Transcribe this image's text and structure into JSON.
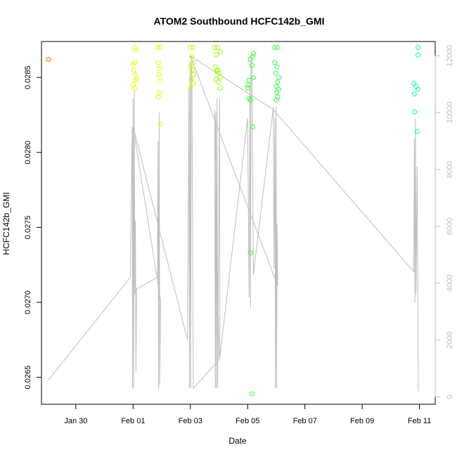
{
  "chart_data": {
    "type": "scatter",
    "title": "ATOM2 Southbound HCFC142b_GMI",
    "xlabel": "Date",
    "ylabel": "HCFC142b_GMI",
    "x_ticks": [
      "Jan 30",
      "Feb 01",
      "Feb 03",
      "Feb 05",
      "Feb 07",
      "Feb 09",
      "Feb 11"
    ],
    "x_ticks_day": [
      0,
      2,
      4,
      6,
      8,
      10,
      12
    ],
    "y_ticks": [
      "0.0265",
      "0.0270",
      "0.0275",
      "0.0280",
      "0.0285"
    ],
    "y_ticks_value": [
      0.0265,
      0.027,
      0.0275,
      0.028,
      0.0285
    ],
    "y2_ticks": [
      "0",
      "2000",
      "4000",
      "6000",
      "8000",
      "10000",
      "12000"
    ],
    "y2_ticks_value": [
      0,
      2000,
      4000,
      6000,
      8000,
      10000,
      12000
    ],
    "xlim": [
      -1.2,
      12.55
    ],
    "ylim": [
      0.02632,
      0.02874
    ],
    "y2lim": [
      -260,
      12500
    ],
    "series": [
      {
        "role": "points",
        "values": [
          [
            -0.95,
            0.02862,
            "#ff6600"
          ],
          [
            2.05,
            0.0287,
            "#e6ff00"
          ],
          [
            2.1,
            0.02868,
            "#e6ff00"
          ],
          [
            2.0,
            0.02859,
            "#e6ff00"
          ],
          [
            2.02,
            0.02855,
            "#e6ff00"
          ],
          [
            2.08,
            0.02852,
            "#e6ff00"
          ],
          [
            2.1,
            0.02848,
            "#e6ff00"
          ],
          [
            2.0,
            0.02845,
            "#e6ff00"
          ],
          [
            2.05,
            0.02843,
            "#e6ff00"
          ],
          [
            2.12,
            0.02849,
            "#e6ff00"
          ],
          [
            2.07,
            0.0286,
            "#e6ff00"
          ],
          [
            2.85,
            0.0287,
            "#d9ff00"
          ],
          [
            2.95,
            0.0287,
            "#d9ff00"
          ],
          [
            2.88,
            0.0286,
            "#d9ff00"
          ],
          [
            2.93,
            0.02856,
            "#d9ff00"
          ],
          [
            2.9,
            0.02852,
            "#d9ff00"
          ],
          [
            2.95,
            0.02848,
            "#d9ff00"
          ],
          [
            2.92,
            0.0284,
            "#d9ff00"
          ],
          [
            2.88,
            0.02837,
            "#d9ff00"
          ],
          [
            2.95,
            0.02819,
            "#d9ff00"
          ],
          [
            4.0,
            0.0287,
            "#bfff00"
          ],
          [
            4.1,
            0.0287,
            "#bfff00"
          ],
          [
            4.05,
            0.02864,
            "#bfff00"
          ],
          [
            4.1,
            0.0286,
            "#bfff00"
          ],
          [
            4.0,
            0.02857,
            "#bfff00"
          ],
          [
            4.07,
            0.02855,
            "#bfff00"
          ],
          [
            4.12,
            0.02852,
            "#bfff00"
          ],
          [
            4.03,
            0.02849,
            "#bfff00"
          ],
          [
            4.1,
            0.02846,
            "#bfff00"
          ],
          [
            4.0,
            0.02843,
            "#bfff00"
          ],
          [
            4.85,
            0.0287,
            "#99ff00"
          ],
          [
            4.95,
            0.0287,
            "#99ff00"
          ],
          [
            4.9,
            0.02865,
            "#99ff00"
          ],
          [
            5.05,
            0.02867,
            "#99ff00"
          ],
          [
            4.88,
            0.02857,
            "#99ff00"
          ],
          [
            4.95,
            0.02855,
            "#99ff00"
          ],
          [
            5.0,
            0.02853,
            "#99ff00"
          ],
          [
            5.05,
            0.0285,
            "#99ff00"
          ],
          [
            4.9,
            0.02849,
            "#99ff00"
          ],
          [
            4.98,
            0.02847,
            "#99ff00"
          ],
          [
            5.04,
            0.02843,
            "#99ff00"
          ],
          [
            4.93,
            0.02854,
            "#99ff00"
          ],
          [
            6.1,
            0.02862,
            "#33ff33"
          ],
          [
            6.2,
            0.02866,
            "#33ff33"
          ],
          [
            6.18,
            0.02864,
            "#33ff33"
          ],
          [
            6.15,
            0.02858,
            "#33ff33"
          ],
          [
            6.05,
            0.02848,
            "#33ff33"
          ],
          [
            6.02,
            0.02845,
            "#33ff33"
          ],
          [
            6.0,
            0.02843,
            "#33ff33"
          ],
          [
            6.2,
            0.0285,
            "#33ff33"
          ],
          [
            6.05,
            0.02836,
            "#33ff33"
          ],
          [
            6.1,
            0.02835,
            "#33ff33"
          ],
          [
            6.18,
            0.02817,
            "#33ff33"
          ],
          [
            6.1,
            0.02733,
            "#33ff33"
          ],
          [
            6.15,
            0.02639,
            "#33ff33"
          ],
          [
            6.95,
            0.0287,
            "#33ff55"
          ],
          [
            7.05,
            0.0287,
            "#33ff55"
          ],
          [
            6.95,
            0.0286,
            "#33ff55"
          ],
          [
            7.02,
            0.02857,
            "#33ff55"
          ],
          [
            6.98,
            0.02853,
            "#33ff55"
          ],
          [
            7.05,
            0.02847,
            "#33ff55"
          ],
          [
            7.0,
            0.02844,
            "#33ff55"
          ],
          [
            7.08,
            0.02842,
            "#33ff55"
          ],
          [
            7.02,
            0.0284,
            "#33ff55"
          ],
          [
            7.05,
            0.02837,
            "#33ff55"
          ],
          [
            7.0,
            0.02835,
            "#33ff55"
          ],
          [
            7.1,
            0.0285,
            "#33ff55"
          ],
          [
            11.95,
            0.0287,
            "#00ff99"
          ],
          [
            11.95,
            0.02865,
            "#00ff99"
          ],
          [
            11.8,
            0.02846,
            "#00ff99"
          ],
          [
            11.88,
            0.02844,
            "#00ff99"
          ],
          [
            11.95,
            0.02842,
            "#00ff99"
          ],
          [
            11.82,
            0.02839,
            "#00ff99"
          ],
          [
            11.83,
            0.02827,
            "#00ff99"
          ],
          [
            11.92,
            0.02814,
            "#00ff99"
          ]
        ]
      },
      {
        "role": "altitude-line",
        "color": "#bebebe",
        "values": [
          [
            -0.95,
            600
          ],
          [
            1.9,
            4200
          ],
          [
            1.97,
            9500
          ],
          [
            1.98,
            300
          ],
          [
            2.0,
            10500
          ],
          [
            2.02,
            300
          ],
          [
            2.04,
            10800
          ],
          [
            2.06,
            3600
          ],
          [
            2.08,
            6200
          ],
          [
            2.1,
            900
          ],
          [
            2.12,
            3800
          ],
          [
            2.85,
            4200
          ],
          [
            2.87,
            9000
          ],
          [
            2.89,
            300
          ],
          [
            2.91,
            10000
          ],
          [
            2.93,
            400
          ],
          [
            2.96,
            3400
          ],
          [
            2.0,
            9500
          ],
          [
            3.9,
            2000
          ],
          [
            3.95,
            10800
          ],
          [
            3.97,
            300
          ],
          [
            3.99,
            11800
          ],
          [
            4.01,
            300
          ],
          [
            4.03,
            11500
          ],
          [
            4.05,
            12000
          ],
          [
            4.1,
            300
          ],
          [
            5.0,
            1300
          ],
          [
            4.85,
            10100
          ],
          [
            4.87,
            300
          ],
          [
            4.89,
            10000
          ],
          [
            4.91,
            300
          ],
          [
            4.93,
            10500
          ],
          [
            4.95,
            300
          ],
          [
            5.02,
            10500
          ],
          [
            5.03,
            1400
          ],
          [
            6.0,
            9800
          ],
          [
            6.05,
            3500
          ],
          [
            6.08,
            10900
          ],
          [
            6.1,
            3100
          ],
          [
            6.12,
            12000
          ],
          [
            6.15,
            11500
          ],
          [
            6.2,
            4300
          ],
          [
            6.9,
            10200
          ],
          [
            6.92,
            4500
          ],
          [
            6.95,
            9800
          ],
          [
            6.97,
            300
          ],
          [
            6.99,
            10200
          ],
          [
            7.01,
            300
          ],
          [
            7.03,
            6100
          ],
          [
            7.05,
            3900
          ],
          [
            4.0,
            12000
          ],
          [
            6.9,
            10100
          ],
          [
            11.8,
            4400
          ],
          [
            11.82,
            9100
          ],
          [
            11.84,
            3300
          ],
          [
            11.86,
            9800
          ],
          [
            11.88,
            3600
          ],
          [
            11.92,
            8100
          ],
          [
            11.96,
            200
          ]
        ]
      }
    ],
    "grid": false,
    "legend": "none"
  }
}
